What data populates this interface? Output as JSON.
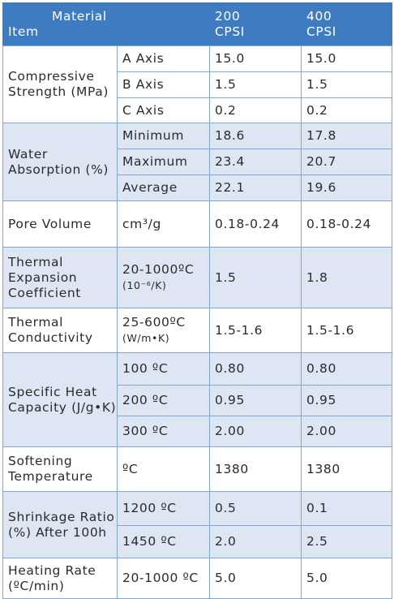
{
  "header": {
    "material_label": "Material",
    "item_label": "Item",
    "col_200": [
      "200",
      "CPSI"
    ],
    "col_400": [
      "400",
      "CPSI"
    ]
  },
  "groups": [
    {
      "property": "Compressive Strength (MPa)",
      "rows": [
        {
          "condition": "A Axis",
          "v200": "15.0",
          "v400": "15.0"
        },
        {
          "condition": "B Axis",
          "v200": "1.5",
          "v400": "1.5"
        },
        {
          "condition": "C Axis",
          "v200": "0.2",
          "v400": "0.2"
        }
      ]
    },
    {
      "property": "Water Absorption (%)",
      "rows": [
        {
          "condition": "Minimum",
          "v200": "18.6",
          "v400": "17.8"
        },
        {
          "condition": "Maximum",
          "v200": "23.4",
          "v400": "20.7"
        },
        {
          "condition": "Average",
          "v200": "22.1",
          "v400": "19.6"
        }
      ]
    },
    {
      "property": "Pore Volume",
      "rows": [
        {
          "condition": "cm³/g",
          "v200": "0.18-0.24",
          "v400": "0.18-0.24"
        }
      ]
    },
    {
      "property": "Thermal Expansion Coefficient",
      "rows": [
        {
          "condition": "20-1000ºC",
          "condition_unit": "(10⁻⁶/K)",
          "v200": "1.5",
          "v400": "1.8"
        }
      ]
    },
    {
      "property": "Thermal Conductivity",
      "rows": [
        {
          "condition": "25-600ºC",
          "condition_unit": "(W/m•K)",
          "v200": "1.5-1.6",
          "v400": "1.5-1.6"
        }
      ]
    },
    {
      "property": "Specific Heat Capacity (J/g•K)",
      "rows": [
        {
          "condition": "100 ºC",
          "v200": "0.80",
          "v400": "0.80"
        },
        {
          "condition": "200 ºC",
          "v200": "0.95",
          "v400": "0.95"
        },
        {
          "condition": "300 ºC",
          "v200": "2.00",
          "v400": "2.00"
        }
      ]
    },
    {
      "property": "Softening Temperature",
      "rows": [
        {
          "condition": "ºC",
          "v200": "1380",
          "v400": "1380"
        }
      ]
    },
    {
      "property": "Shrinkage Ratio (%) After 100h",
      "rows": [
        {
          "condition": "1200 ºC",
          "v200": "0.5",
          "v400": "0.1"
        },
        {
          "condition": "1450 ºC",
          "v200": "2.0",
          "v400": "2.5"
        }
      ]
    },
    {
      "property": "Heating Rate (ºC/min)",
      "rows": [
        {
          "condition": "20-1000 ºC",
          "v200": "5.0",
          "v400": "5.0"
        }
      ]
    }
  ],
  "colors": {
    "header_bg": "#3f7bc1",
    "band_blue": "#dde6f2",
    "border": "#7fa7d1"
  }
}
